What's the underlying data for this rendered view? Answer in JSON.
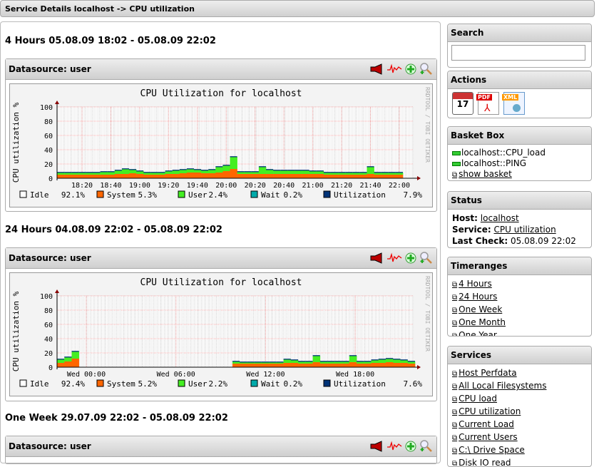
{
  "title": "Service Details localhost -> CPU utilization",
  "sections": [
    {
      "heading": "4 Hours 05.08.09 18:02 - 05.08.09 22:02",
      "datasource": "Datasource: user"
    },
    {
      "heading": "24 Hours 04.08.09 22:02 - 05.08.09 22:02",
      "datasource": "Datasource: user"
    },
    {
      "heading": "One Week 29.07.09 22:02 - 05.08.09 22:02",
      "datasource": "Datasource: user"
    }
  ],
  "toolbar_icons": [
    "megaphone-icon",
    "graph-line-icon",
    "add-basket-icon",
    "zoom-icon"
  ],
  "colors": {
    "system": "#ff6600",
    "user": "#44ee22",
    "wait": "#00aaaa",
    "utilization": "#003377",
    "grid": "#e88"
  },
  "chart_data": [
    {
      "type": "area",
      "title": "CPU Utilization for localhost",
      "ylabel": "CPU utilization %",
      "side_label": "RRDTOOL / TOBI OETIKER",
      "ylim": [
        0,
        100
      ],
      "yticks": [
        "0",
        "20",
        "40",
        "60",
        "80",
        "100"
      ],
      "xticks": [
        "18:20",
        "18:40",
        "19:00",
        "19:20",
        "19:40",
        "20:00",
        "20:20",
        "20:40",
        "21:00",
        "21:20",
        "21:40",
        "22:00"
      ],
      "x_start": "18:02",
      "x_end": "22:02",
      "grid": true,
      "series": [
        {
          "name": "System",
          "values": [
            5,
            5,
            5,
            5,
            5,
            5,
            5,
            5,
            6,
            6,
            7,
            6,
            5,
            5,
            5,
            6,
            6,
            7,
            8,
            8,
            7,
            7,
            8,
            10,
            13,
            6,
            6,
            6,
            6,
            6,
            6,
            6,
            6,
            6,
            6,
            6,
            6,
            5,
            5,
            5,
            5,
            5,
            5,
            6,
            5,
            5,
            5,
            5
          ]
        },
        {
          "name": "User",
          "values": [
            3,
            3,
            3,
            3,
            3,
            3,
            4,
            4,
            5,
            7,
            5,
            4,
            3,
            3,
            3,
            4,
            5,
            5,
            5,
            4,
            4,
            5,
            8,
            8,
            17,
            3,
            3,
            3,
            10,
            6,
            5,
            5,
            5,
            5,
            5,
            4,
            4,
            3,
            3,
            3,
            3,
            3,
            3,
            10,
            3,
            3,
            3,
            3
          ]
        }
      ],
      "legend": [
        {
          "name": "Idle",
          "value": "92.1%",
          "color": "#ffffff"
        },
        {
          "name": "System",
          "value": "5.3%",
          "color": "#ff6600"
        },
        {
          "name": "User",
          "value": "2.4%",
          "color": "#44ee22"
        },
        {
          "name": "Wait",
          "value": "0.2%",
          "color": "#00aaaa"
        },
        {
          "name": "Utilization",
          "value": "7.9%",
          "color": "#003377"
        }
      ]
    },
    {
      "type": "area",
      "title": "CPU Utilization for localhost",
      "ylabel": "CPU utilization %",
      "side_label": "RRDTOOL / TOBI OETIKER",
      "ylim": [
        0,
        100
      ],
      "yticks": [
        "0",
        "20",
        "40",
        "60",
        "80",
        "100"
      ],
      "xticks": [
        "Wed 00:00",
        "Wed 06:00",
        "Wed 12:00",
        "Wed 18:00"
      ],
      "x_start": "04.08.09 22:02",
      "x_end": "05.08.09 22:02",
      "grid": true,
      "series": [
        {
          "name": "System",
          "values": [
            6,
            8,
            12,
            null,
            null,
            null,
            null,
            null,
            null,
            null,
            null,
            null,
            null,
            null,
            null,
            null,
            null,
            null,
            null,
            null,
            null,
            null,
            null,
            null,
            5,
            5,
            5,
            5,
            5,
            5,
            5,
            6,
            6,
            5,
            5,
            7,
            5,
            5,
            5,
            5,
            7,
            5,
            5,
            6,
            6,
            7,
            6,
            6,
            5
          ]
        },
        {
          "name": "User",
          "values": [
            5,
            6,
            10,
            null,
            null,
            null,
            null,
            null,
            null,
            null,
            null,
            null,
            null,
            null,
            null,
            null,
            null,
            null,
            null,
            null,
            null,
            null,
            null,
            null,
            3,
            2,
            2,
            2,
            2,
            2,
            2,
            5,
            4,
            3,
            3,
            9,
            3,
            3,
            3,
            3,
            9,
            3,
            3,
            4,
            5,
            5,
            5,
            4,
            3
          ]
        }
      ],
      "legend": [
        {
          "name": "Idle",
          "value": "92.4%",
          "color": "#ffffff"
        },
        {
          "name": "System",
          "value": "5.2%",
          "color": "#ff6600"
        },
        {
          "name": "User",
          "value": "2.2%",
          "color": "#44ee22"
        },
        {
          "name": "Wait",
          "value": "0.2%",
          "color": "#00aaaa"
        },
        {
          "name": "Utilization",
          "value": "7.6%",
          "color": "#003377"
        }
      ]
    }
  ],
  "sidebar": {
    "search": {
      "title": "Search",
      "value": ""
    },
    "actions": {
      "title": "Actions",
      "icons": [
        "calendar-icon",
        "pdf-icon",
        "xml-icon"
      ],
      "calendar_day": "17",
      "pdf": "PDF",
      "xml": "XML"
    },
    "basket": {
      "title": "Basket Box",
      "items": [
        "localhost::CPU_load",
        "localhost::PING"
      ],
      "show": "show basket"
    },
    "status": {
      "title": "Status",
      "host_label": "Host:",
      "host": "localhost",
      "service_label": "Service:",
      "service": "CPU utilization",
      "check_label": "Last Check:",
      "check": "05.08.09 22:02"
    },
    "timeranges": {
      "title": "Timeranges",
      "items": [
        "4 Hours",
        "24 Hours",
        "One Week",
        "One Month",
        "One Year"
      ]
    },
    "services": {
      "title": "Services",
      "items": [
        "Host Perfdata",
        "All Local Filesystems",
        "CPU load",
        "CPU utilization",
        "Current Load",
        "Current Users",
        "C:\\ Drive Space",
        "Disk IO read"
      ]
    }
  }
}
